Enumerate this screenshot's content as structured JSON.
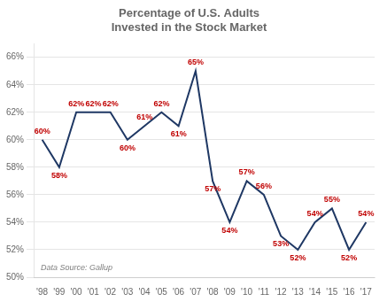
{
  "chart_data": {
    "type": "line",
    "title": "Percentage of U.S. Adults\nInvested in the Stock Market",
    "categories": [
      "'98",
      "'99",
      "'00",
      "'01",
      "'02",
      "'03",
      "'04",
      "'05",
      "'06",
      "'07",
      "'08",
      "'09",
      "'10",
      "'11",
      "'12",
      "'13",
      "'14",
      "'15",
      "'16",
      "'17"
    ],
    "values": [
      60,
      58,
      62,
      62,
      62,
      60,
      61,
      62,
      61,
      65,
      57,
      54,
      57,
      56,
      53,
      52,
      54,
      55,
      52,
      54
    ],
    "value_labels": [
      "60%",
      "58%",
      "62%",
      "62%",
      "62%",
      "60%",
      "61%",
      "62%",
      "61%",
      "65%",
      "57%",
      "54%",
      "57%",
      "56%",
      "53%",
      "52%",
      "54%",
      "55%",
      "52%",
      "54%"
    ],
    "data_labels": true,
    "color": "#1F3864",
    "ylim": [
      50,
      67
    ],
    "yticks": [
      {
        "value": 50,
        "label": "50%"
      },
      {
        "value": 52,
        "label": "52%"
      },
      {
        "value": 54,
        "label": "54%"
      },
      {
        "value": 56,
        "label": "56%"
      },
      {
        "value": 58,
        "label": "58%"
      },
      {
        "value": 60,
        "label": "60%"
      },
      {
        "value": 62,
        "label": "62%"
      },
      {
        "value": 64,
        "label": "64%"
      },
      {
        "value": 66,
        "label": "66%"
      }
    ],
    "grid": true,
    "annotations": [
      "Data Source: Gallup"
    ]
  }
}
